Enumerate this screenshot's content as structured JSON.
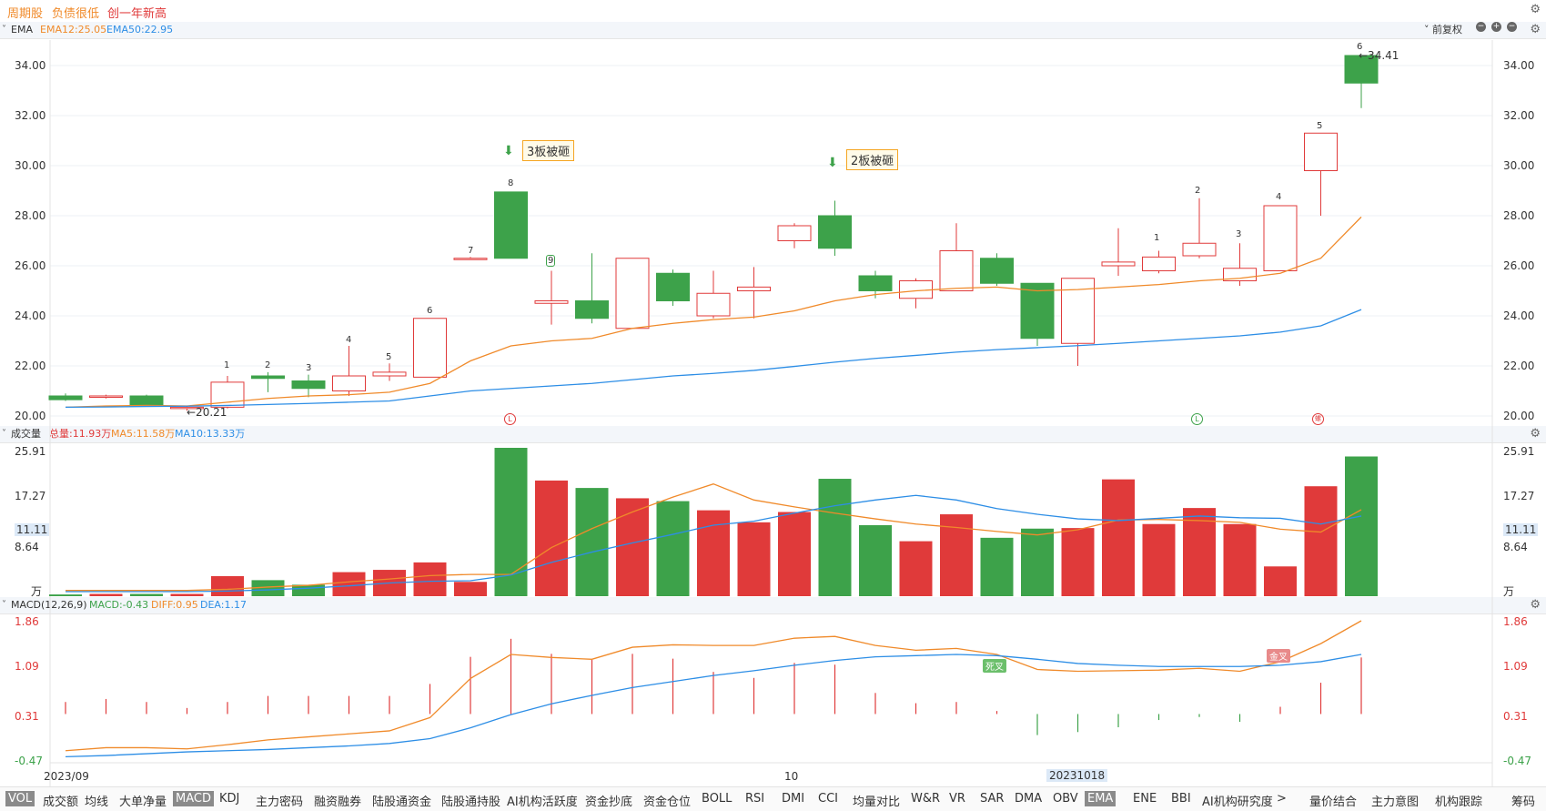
{
  "tags": [
    {
      "label": "周期股",
      "color": "#f08a2a"
    },
    {
      "label": "负债很低",
      "color": "#f08a2a"
    },
    {
      "label": "创一年新高",
      "color": "#e03a3a"
    }
  ],
  "ema_panel": {
    "name": "EMA",
    "ema12": "EMA12:25.05",
    "ema50": "EMA50:22.95",
    "right_label": "前复权",
    "y_ticks": [
      "34.00",
      "32.00",
      "30.00",
      "28.00",
      "26.00",
      "24.00",
      "22.00",
      "20.00"
    ],
    "low_label": "←20.21",
    "high_label": "←34.41",
    "annotations": [
      "3板被砸",
      "2板被砸"
    ],
    "candle_numbers": [
      "1",
      "2",
      "3",
      "4",
      "5",
      "6",
      "7",
      "8",
      "9",
      "1",
      "2",
      "3",
      "4",
      "5",
      "6"
    ],
    "markers": [
      "L",
      "L",
      "螺"
    ]
  },
  "vol_panel": {
    "name": "成交量",
    "total": "总量:11.93万",
    "ma5": "MA5:11.58万",
    "ma10": "MA10:13.33万",
    "y_ticks": [
      "25.91",
      "17.27",
      "8.64"
    ],
    "highlight": "11.11",
    "unit": "万"
  },
  "macd_panel": {
    "name": "MACD(12,26,9)",
    "macd": "MACD:-0.43",
    "diff": "DIFF:0.95",
    "dea": "DEA:1.17",
    "y_ticks": [
      "1.86",
      "1.09",
      "0.31",
      "-0.47"
    ],
    "cross_dead": "死叉",
    "cross_gold": "金叉"
  },
  "x_axis": {
    "start": "2023/09",
    "mid": "10",
    "cursor": "20231018"
  },
  "tabs": [
    "VOL",
    "成交额",
    "均线",
    "大单净量",
    "MACD",
    "KDJ",
    "主力密码",
    "融资融券",
    "陆股通资金",
    "陆股通持股",
    "AI机构活跃度",
    "资金抄底",
    "资金仓位",
    "BOLL",
    "RSI",
    "DMI",
    "CCI",
    "均量对比",
    "W&R",
    "VR",
    "SAR",
    "DMA",
    "OBV",
    "EMA",
    "ENE",
    "BBI",
    "AI机构研究度",
    ">",
    "量价结合",
    "主力意图",
    "机构跟踪",
    "筹码"
  ],
  "active_tabs": [
    "VOL",
    "MACD",
    "EMA"
  ],
  "colors": {
    "up": "#e03a3a",
    "down": "#3da24a",
    "ema12": "#f08a2a",
    "ema50": "#2d8ee6"
  },
  "chart_data": {
    "type": "candlestick",
    "candles": [
      {
        "o": 20.8,
        "c": 20.65,
        "h": 20.9,
        "l": 20.6
      },
      {
        "o": 20.8,
        "c": 20.8,
        "h": 20.85,
        "l": 20.7
      },
      {
        "o": 20.8,
        "c": 20.4,
        "h": 20.85,
        "l": 20.4
      },
      {
        "o": 20.35,
        "c": 20.35,
        "h": 20.4,
        "l": 20.21
      },
      {
        "o": 20.35,
        "c": 21.35,
        "h": 21.6,
        "l": 20.3
      },
      {
        "o": 21.6,
        "c": 21.5,
        "h": 21.75,
        "l": 20.95
      },
      {
        "o": 21.4,
        "c": 21.1,
        "h": 21.65,
        "l": 20.75
      },
      {
        "o": 21.0,
        "c": 21.6,
        "h": 22.8,
        "l": 20.8
      },
      {
        "o": 21.6,
        "c": 21.75,
        "h": 22.1,
        "l": 21.4
      },
      {
        "o": 21.55,
        "c": 23.9,
        "h": 23.9,
        "l": 21.55
      },
      {
        "o": 26.3,
        "c": 26.3,
        "h": 26.35,
        "l": 26.25
      },
      {
        "o": 28.95,
        "c": 26.3,
        "h": 28.95,
        "l": 26.3
      },
      {
        "o": 24.5,
        "c": 24.6,
        "h": 25.8,
        "l": 23.65
      },
      {
        "o": 24.6,
        "c": 23.9,
        "h": 26.5,
        "l": 23.7
      },
      {
        "o": 23.5,
        "c": 26.3,
        "h": 26.3,
        "l": 23.5
      },
      {
        "o": 25.7,
        "c": 24.6,
        "h": 25.85,
        "l": 24.4
      },
      {
        "o": 24.0,
        "c": 24.9,
        "h": 25.8,
        "l": 23.9
      },
      {
        "o": 25.0,
        "c": 25.15,
        "h": 25.95,
        "l": 23.9
      },
      {
        "o": 27.0,
        "c": 27.6,
        "h": 27.7,
        "l": 26.7
      },
      {
        "o": 28.0,
        "c": 26.7,
        "h": 28.6,
        "l": 26.4
      },
      {
        "o": 25.6,
        "c": 25.0,
        "h": 25.8,
        "l": 24.7
      },
      {
        "o": 24.7,
        "c": 25.4,
        "h": 25.5,
        "l": 24.3
      },
      {
        "o": 25.0,
        "c": 26.6,
        "h": 27.7,
        "l": 25.0
      },
      {
        "o": 26.3,
        "c": 25.3,
        "h": 26.5,
        "l": 25.2
      },
      {
        "o": 25.3,
        "c": 23.1,
        "h": 25.3,
        "l": 22.8
      },
      {
        "o": 22.9,
        "c": 25.5,
        "h": 25.5,
        "l": 22.0
      },
      {
        "o": 26.0,
        "c": 26.15,
        "h": 27.5,
        "l": 25.6
      },
      {
        "o": 25.8,
        "c": 26.35,
        "h": 26.6,
        "l": 25.7
      },
      {
        "o": 26.4,
        "c": 26.9,
        "h": 28.7,
        "l": 26.3
      },
      {
        "o": 25.4,
        "c": 25.9,
        "h": 26.9,
        "l": 25.2
      },
      {
        "o": 25.8,
        "c": 28.4,
        "h": 28.4,
        "l": 25.8
      },
      {
        "o": 29.8,
        "c": 31.3,
        "h": 31.3,
        "l": 28.0
      },
      {
        "o": 34.4,
        "c": 33.3,
        "h": 34.41,
        "l": 32.3
      }
    ],
    "ema12": [
      20.35,
      20.4,
      20.42,
      20.4,
      20.55,
      20.7,
      20.8,
      20.85,
      20.95,
      21.3,
      22.2,
      22.8,
      23.0,
      23.1,
      23.5,
      23.7,
      23.85,
      23.95,
      24.2,
      24.6,
      24.85,
      25.0,
      25.1,
      25.15,
      25.0,
      25.05,
      25.15,
      25.25,
      25.4,
      25.5,
      25.7,
      26.3,
      27.95
    ],
    "ema50": [
      20.35,
      20.36,
      20.38,
      20.39,
      20.42,
      20.46,
      20.5,
      20.55,
      20.6,
      20.8,
      21.0,
      21.1,
      21.2,
      21.3,
      21.45,
      21.6,
      21.7,
      21.82,
      21.98,
      22.15,
      22.3,
      22.42,
      22.55,
      22.65,
      22.73,
      22.81,
      22.9,
      23.0,
      23.1,
      23.2,
      23.35,
      23.6,
      24.25
    ],
    "volume_up": [
      false,
      true,
      false,
      true,
      true,
      false,
      false,
      true,
      true,
      true,
      true,
      false,
      true,
      false,
      true,
      false,
      true,
      true,
      true,
      false,
      false,
      true,
      true,
      false,
      false,
      true,
      true,
      true,
      true,
      true,
      true,
      true,
      false
    ],
    "volume": [
      0.3,
      0.4,
      0.4,
      0.4,
      3.5,
      2.8,
      2.0,
      4.2,
      4.6,
      5.9,
      2.5,
      25.91,
      20.2,
      18.9,
      17.1,
      16.6,
      15.0,
      12.9,
      14.7,
      20.5,
      12.4,
      9.6,
      14.3,
      10.2,
      11.8,
      11.9,
      20.4,
      12.6,
      15.4,
      12.6,
      5.2,
      19.2,
      24.4
    ],
    "vol_ma5": [
      1.0,
      1.0,
      1.0,
      1.0,
      1.2,
      1.6,
      1.9,
      2.5,
      3.0,
      3.6,
      3.8,
      3.8,
      8.5,
      11.8,
      14.7,
      17.3,
      19.6,
      16.8,
      15.6,
      14.5,
      13.5,
      12.6,
      12.0,
      11.3,
      10.7,
      11.6,
      13.3,
      13.4,
      13.2,
      12.9,
      11.7,
      11.2,
      15.1
    ],
    "vol_ma10": [
      0.8,
      0.8,
      0.8,
      0.8,
      0.9,
      1.1,
      1.4,
      1.8,
      2.3,
      2.6,
      2.7,
      3.7,
      5.9,
      7.7,
      9.3,
      10.8,
      12.4,
      13.1,
      14.5,
      15.8,
      16.8,
      17.6,
      16.8,
      15.3,
      14.3,
      13.5,
      13.2,
      13.6,
      14.0,
      13.7,
      13.6,
      12.6,
      14.0
    ],
    "diff": [
      -0.3,
      -0.25,
      -0.25,
      -0.27,
      -0.2,
      -0.12,
      -0.07,
      -0.02,
      0.03,
      0.25,
      0.9,
      1.3,
      1.25,
      1.22,
      1.42,
      1.46,
      1.45,
      1.45,
      1.57,
      1.6,
      1.45,
      1.37,
      1.4,
      1.3,
      1.05,
      1.02,
      1.03,
      1.04,
      1.07,
      1.02,
      1.18,
      1.48,
      1.86
    ],
    "dea": [
      -0.4,
      -0.38,
      -0.35,
      -0.32,
      -0.3,
      -0.28,
      -0.25,
      -0.22,
      -0.18,
      -0.1,
      0.08,
      0.3,
      0.48,
      0.62,
      0.75,
      0.85,
      0.95,
      1.03,
      1.12,
      1.2,
      1.26,
      1.28,
      1.3,
      1.28,
      1.22,
      1.15,
      1.12,
      1.1,
      1.1,
      1.1,
      1.12,
      1.18,
      1.3
    ],
    "macd_hist": [
      0.2,
      0.25,
      0.2,
      0.1,
      0.2,
      0.3,
      0.3,
      0.3,
      0.3,
      0.5,
      0.95,
      1.25,
      1.0,
      0.9,
      1.0,
      0.92,
      0.7,
      0.6,
      0.85,
      0.82,
      0.35,
      0.18,
      0.2,
      0.05,
      -0.35,
      -0.3,
      -0.22,
      -0.1,
      -0.05,
      -0.13,
      0.12,
      0.52,
      0.94
    ],
    "price_ylim": [
      20.0,
      34.0
    ],
    "vol_ylim": [
      0,
      25.91
    ],
    "macd_ylim": [
      -0.47,
      1.86
    ]
  }
}
